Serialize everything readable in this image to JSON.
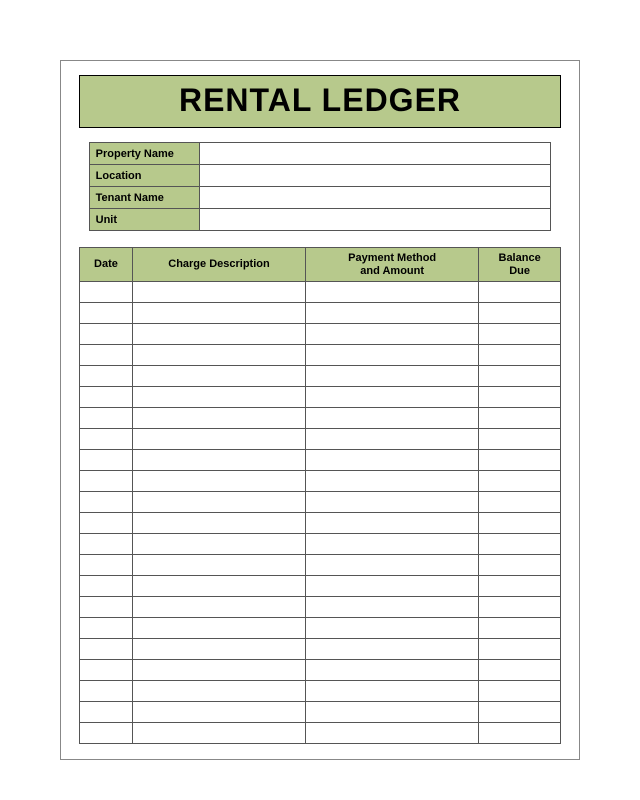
{
  "title": "RENTAL LEDGER",
  "colors": {
    "header_bg": "#b7c98c",
    "border": "#555555",
    "page_border": "#888888",
    "text": "#000000"
  },
  "info_fields": [
    {
      "label": "Property Name",
      "value": ""
    },
    {
      "label": "Location",
      "value": ""
    },
    {
      "label": "Tenant Name",
      "value": ""
    },
    {
      "label": "Unit",
      "value": ""
    }
  ],
  "ledger": {
    "columns": [
      {
        "header": "Date",
        "width_pct": 11
      },
      {
        "header": "Charge Description",
        "width_pct": 36
      },
      {
        "header": "Payment Method\nand Amount",
        "width_pct": 36
      },
      {
        "header": "Balance\nDue",
        "width_pct": 17
      }
    ],
    "row_count": 22,
    "rows": []
  },
  "typography": {
    "title_fontsize": 32,
    "title_weight": 900,
    "header_fontsize": 11,
    "label_fontsize": 11
  }
}
